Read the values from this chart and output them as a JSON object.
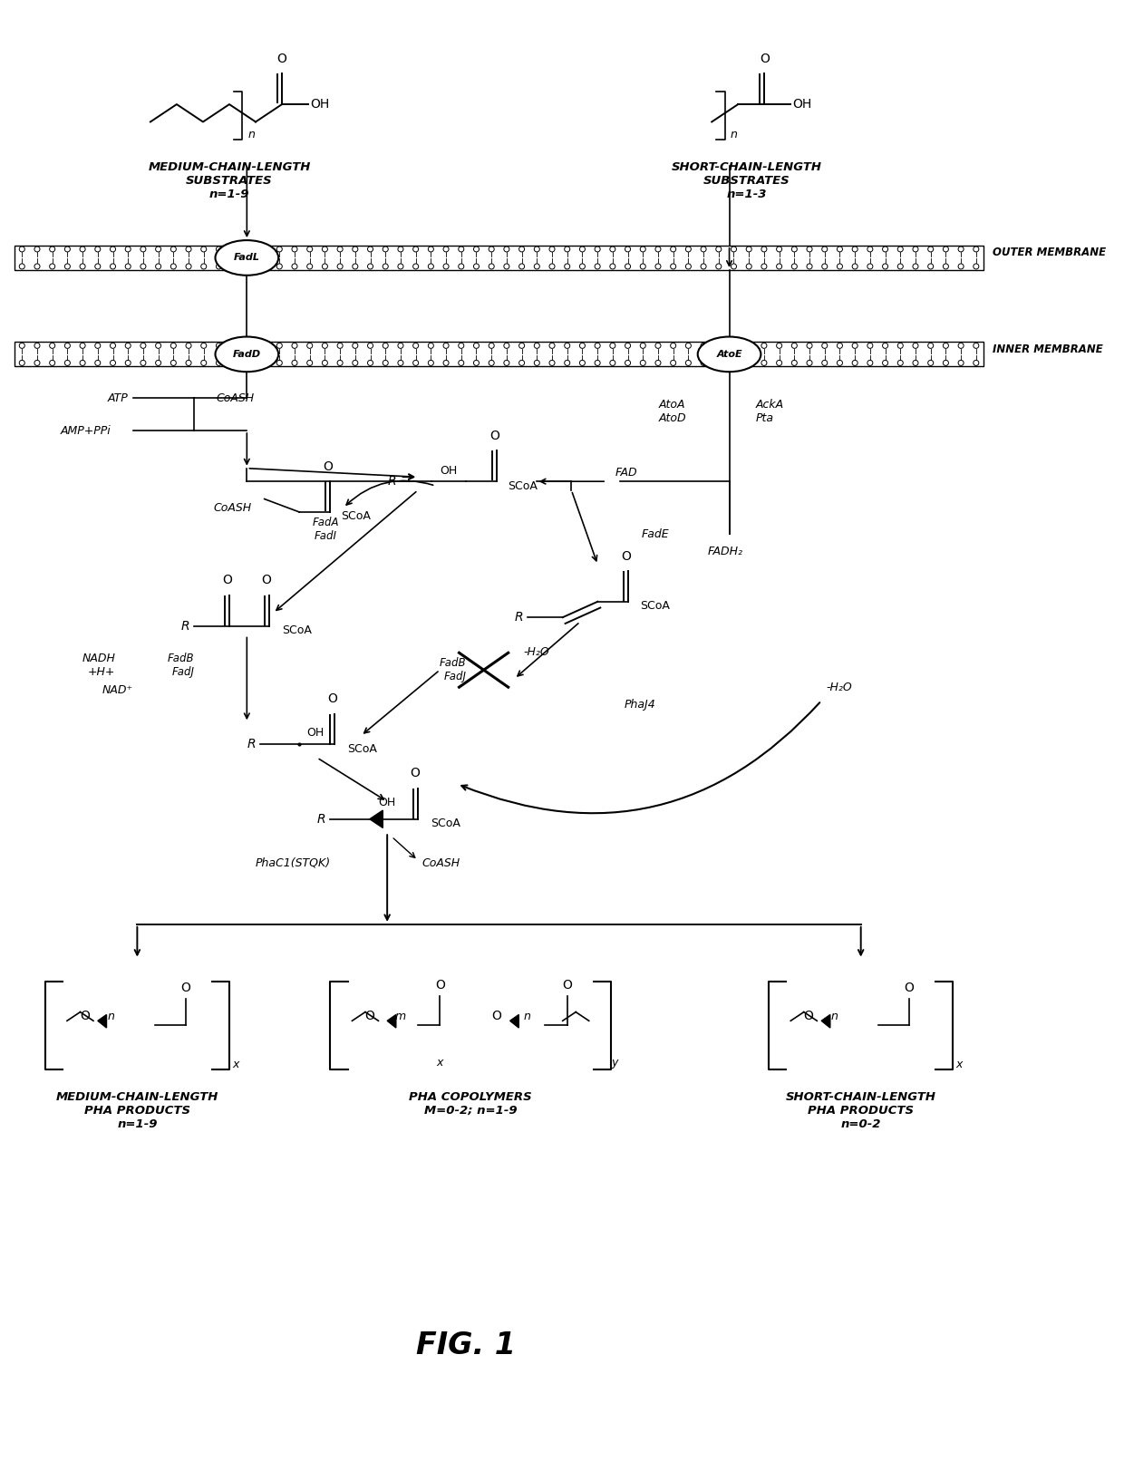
{
  "title": "FIG. 1",
  "background_color": "#ffffff",
  "figsize": [
    12.4,
    16.12
  ],
  "dpi": 100,
  "labels": {
    "medium_chain_substrate": "MEDIUM-CHAIN-LENGTH\nSUBSTRATES\nn=1-9",
    "short_chain_substrate": "SHORT-CHAIN-LENGTH\nSUBSTRATES\nn=1-3",
    "outer_membrane": "OUTER MEMBRANE",
    "inner_membrane": "INNER MEMBRANE",
    "fadL": "FadL",
    "fadD": "FadD",
    "atoE": "AtoE",
    "atp": "ATP",
    "coash1": "CoASH",
    "amp_ppi": "AMP+PPi",
    "fad": "FAD",
    "fadh2": "FADH₂",
    "fade": "FadE",
    "fada_fadi": "FadA\nFadI",
    "coash2": "CoASH",
    "fadb_fadj1": "FadB\nFadJ",
    "nadh": "NADH\n+H+",
    "nad": "NAD⁺",
    "fadb_fadj2": "FadB\nFadJ",
    "h2o1": "-H₂O",
    "h2o2": "-H₂O",
    "phaj4": "PhaJ4",
    "atoa_atod": "AtoA\nAtoD",
    "acka_pta": "AckA\nPta",
    "phac1": "PhaC1(STQK)",
    "coash3": "CoASH",
    "mcl_pha": "MEDIUM-CHAIN-LENGTH\nPHA PRODUCTS\nn=1-9",
    "pha_copoly": "PHA COPOLYMERS\nM=0-2; n=1-9",
    "scl_pha": "SHORT-CHAIN-LENGTH\nPHA PRODUCTS\nn=0-2"
  }
}
